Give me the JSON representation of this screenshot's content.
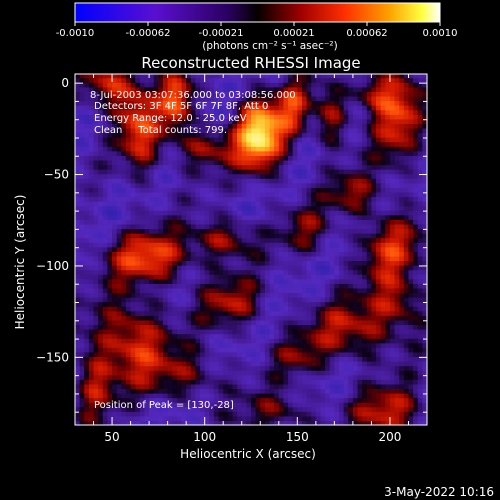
{
  "chart_data": {
    "type": "heatmap",
    "title": "Reconstructed RHESSI Image",
    "xlabel": "Heliocentric X (arcsec)",
    "ylabel": "Heliocentric Y (arcsec)",
    "xlim": [
      30,
      220
    ],
    "ylim": [
      -187,
      5
    ],
    "x_ticks": [
      50,
      100,
      150,
      200
    ],
    "y_ticks": [
      0,
      -50,
      -100,
      -150
    ],
    "colorbar": {
      "colormap": "blue-purple-black-red-orange-yellow-white",
      "range": [
        -0.001,
        0.001
      ],
      "ticks": [
        "-0.0010",
        "-0.00062",
        "-0.00021",
        "0.00021",
        "0.00062",
        "0.0010"
      ],
      "label": "(photons cm⁻² s⁻¹ asec⁻²)"
    },
    "annotations": [
      "8-Jul-2003 03:07:36.000 to 03:08:56.000",
      "Detectors: 3F 4F 5F 6F 7F 8F, Att 0",
      "Energy Range: 12.0 - 25.0 keV",
      "Clean     Total counts: 799."
    ],
    "peak_label": "Position of Peak = [130,-28]",
    "peak": {
      "x": 130,
      "y": -28
    },
    "grid": false
  },
  "footer": {
    "date": "3-May-2022 10:16"
  }
}
